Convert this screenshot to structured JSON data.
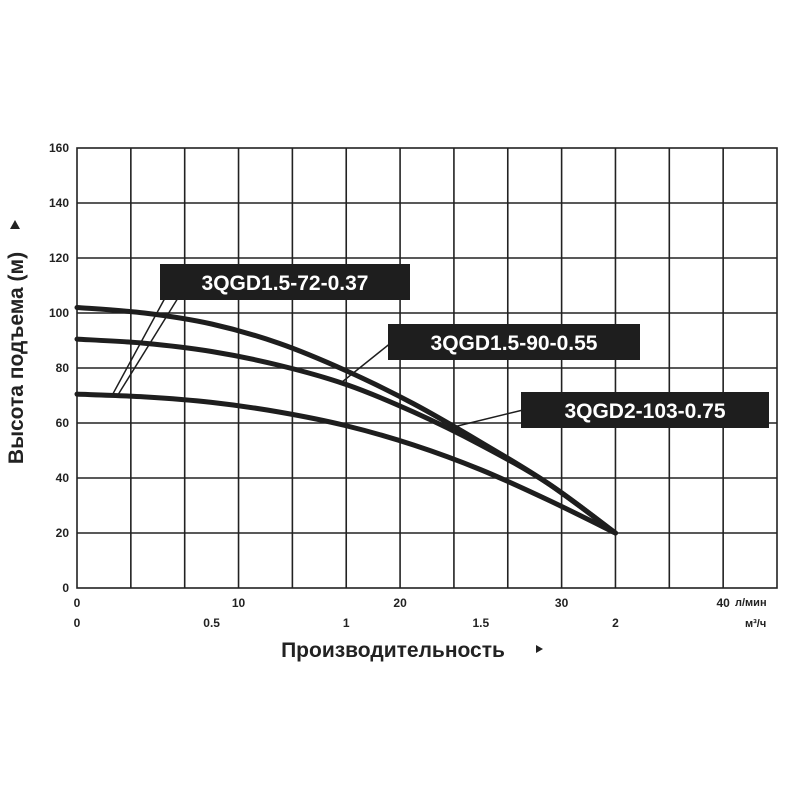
{
  "chart_data": {
    "type": "line",
    "ylabel": "Высота подъема (м)",
    "xlabel": "Производительность",
    "ylim": [
      0,
      160
    ],
    "yticks": [
      "0",
      "20",
      "40",
      "60",
      "80",
      "100",
      "120",
      "140",
      "160"
    ],
    "x_axis_primary": {
      "unit": "л/мин",
      "ticks": [
        "0",
        "10",
        "20",
        "30",
        "40"
      ]
    },
    "x_axis_secondary": {
      "unit": "м³/ч",
      "ticks": [
        "0",
        "0.5",
        "1",
        "1.5",
        "2"
      ]
    },
    "xlim_m3h": [
      0,
      2.6
    ],
    "grid": true,
    "series": [
      {
        "name": "3QGD1.5-72-0.37",
        "x": [
          0,
          0.25,
          0.5,
          0.75,
          1.0,
          1.25,
          1.5,
          1.75,
          2.0
        ],
        "y": [
          70.5,
          69.5,
          67.5,
          64,
          59,
          52,
          43,
          32,
          20
        ]
      },
      {
        "name": "3QGD1.5-90-0.55",
        "x": [
          0,
          0.25,
          0.5,
          0.75,
          1.0,
          1.25,
          1.5,
          1.75,
          2.0
        ],
        "y": [
          90.5,
          89,
          86,
          81,
          74,
          64,
          52,
          38,
          20
        ]
      },
      {
        "name": "3QGD2-103-0.75",
        "x": [
          0,
          0.25,
          0.5,
          0.75,
          1.0,
          1.25,
          1.5,
          1.75,
          2.0
        ],
        "y": [
          102,
          100,
          96,
          89,
          79,
          67,
          53,
          38,
          20
        ]
      }
    ]
  }
}
